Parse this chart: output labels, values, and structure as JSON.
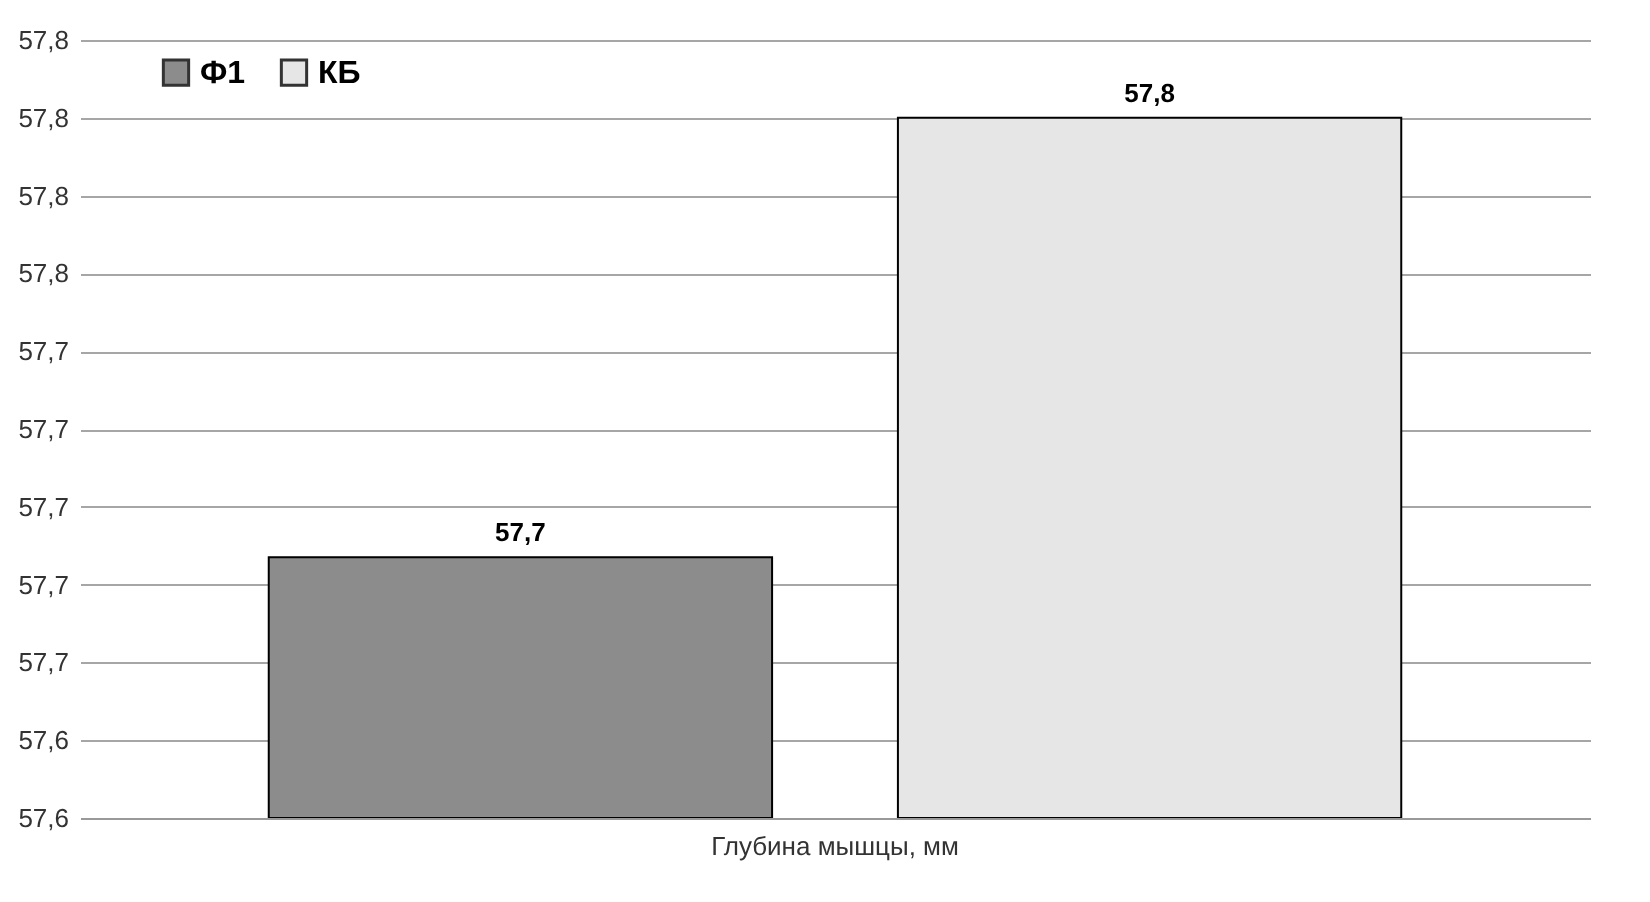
{
  "chart_data": {
    "type": "bar",
    "categories": [
      "Глубина мышцы, мм"
    ],
    "series": [
      {
        "name": "Ф1",
        "color": "#8c8c8c",
        "values": [
          57.687
        ],
        "value_labels": [
          "57,7"
        ]
      },
      {
        "name": "КБ",
        "color": "#e6e6e6",
        "values": [
          57.8
        ],
        "value_labels": [
          "57,8"
        ]
      }
    ],
    "ylim": [
      57.62,
      57.82
    ],
    "yticks": [
      {
        "value": 57.62,
        "label": "57,6"
      },
      {
        "value": 57.64,
        "label": "57,6"
      },
      {
        "value": 57.66,
        "label": "57,7"
      },
      {
        "value": 57.68,
        "label": "57,7"
      },
      {
        "value": 57.7,
        "label": "57,7"
      },
      {
        "value": 57.72,
        "label": "57,7"
      },
      {
        "value": 57.74,
        "label": "57,7"
      },
      {
        "value": 57.76,
        "label": "57,8"
      },
      {
        "value": 57.78,
        "label": "57,8"
      },
      {
        "value": 57.8,
        "label": "57,8"
      },
      {
        "value": 57.82,
        "label": "57,8"
      }
    ],
    "grid": "y",
    "legend": "top left"
  }
}
